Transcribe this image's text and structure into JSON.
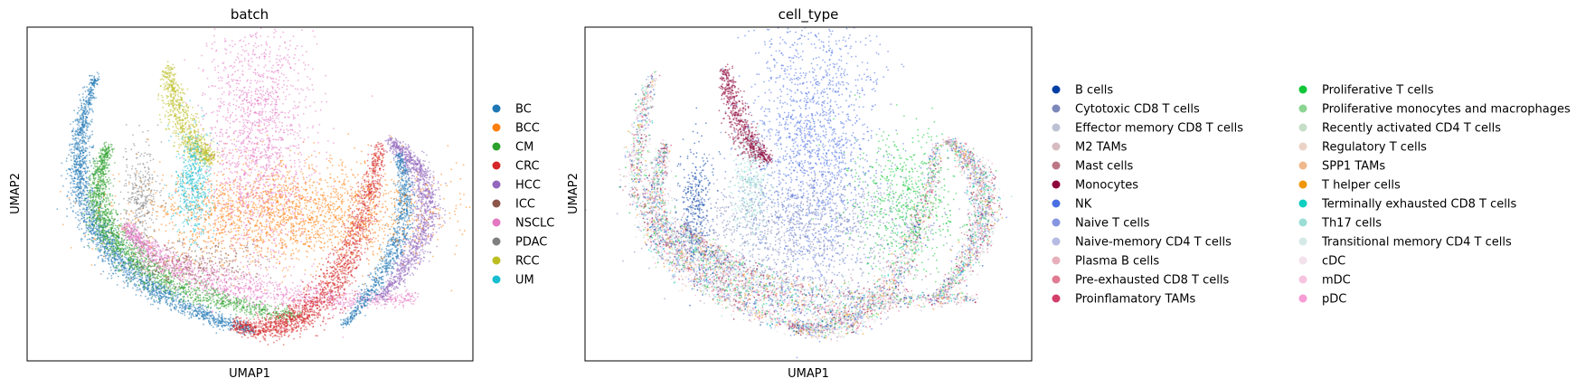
{
  "chart_data": [
    {
      "type": "scatter",
      "title": "batch",
      "xlabel": "UMAP1",
      "ylabel": "UMAP2",
      "grid": false,
      "legend_position": "right",
      "legend": [
        {
          "label": "BC",
          "color": "#1f77b4"
        },
        {
          "label": "BCC",
          "color": "#ff7f0e"
        },
        {
          "label": "CM",
          "color": "#2ca02c"
        },
        {
          "label": "CRC",
          "color": "#d62728"
        },
        {
          "label": "HCC",
          "color": "#9467bd"
        },
        {
          "label": "ICC",
          "color": "#8c564b"
        },
        {
          "label": "NSCLC",
          "color": "#e377c2"
        },
        {
          "label": "PDAC",
          "color": "#7f7f7f"
        },
        {
          "label": "RCC",
          "color": "#bcbd22"
        },
        {
          "label": "UM",
          "color": "#17becf"
        }
      ]
    },
    {
      "type": "scatter",
      "title": "cell_type",
      "xlabel": "UMAP1",
      "ylabel": "UMAP2",
      "grid": false,
      "legend_position": "right",
      "legend": [
        {
          "label": "B cells",
          "color": "#023fa5"
        },
        {
          "label": "Cytotoxic CD8 T cells",
          "color": "#7d87b9"
        },
        {
          "label": "Effector memory CD8 T cells",
          "color": "#bec1d4"
        },
        {
          "label": "M2 TAMs",
          "color": "#d6bcc0"
        },
        {
          "label": "Mast cells",
          "color": "#bb7784"
        },
        {
          "label": "Monocytes",
          "color": "#8e063b"
        },
        {
          "label": "NK",
          "color": "#4a6fe3"
        },
        {
          "label": "Naive T cells",
          "color": "#8595e1"
        },
        {
          "label": "Naive-memory CD4 T cells",
          "color": "#b5bbe3"
        },
        {
          "label": "Plasma B cells",
          "color": "#e6afb9"
        },
        {
          "label": "Pre-exhausted CD8 T cells",
          "color": "#e07b91"
        },
        {
          "label": "Proinflamatory TAMs",
          "color": "#d33f6a"
        },
        {
          "label": "Proliferative T cells",
          "color": "#11c638"
        },
        {
          "label": "Proliferative monocytes and macrophages",
          "color": "#8dd593"
        },
        {
          "label": "Recently activated CD4 T cells",
          "color": "#c6dec7"
        },
        {
          "label": "Regulatory T cells",
          "color": "#ead3c6"
        },
        {
          "label": "SPP1 TAMs",
          "color": "#f0b98d"
        },
        {
          "label": "T helper cells",
          "color": "#ef9708"
        },
        {
          "label": "Terminally exhausted CD8 T cells",
          "color": "#0fcfc0"
        },
        {
          "label": "Th17 cells",
          "color": "#9cded6"
        },
        {
          "label": "Transitional memory CD4 T cells",
          "color": "#d5eae7"
        },
        {
          "label": "cDC",
          "color": "#f3e1eb"
        },
        {
          "label": "mDC",
          "color": "#f6c4e1"
        },
        {
          "label": "pDC",
          "color": "#f79cd4"
        }
      ]
    }
  ]
}
